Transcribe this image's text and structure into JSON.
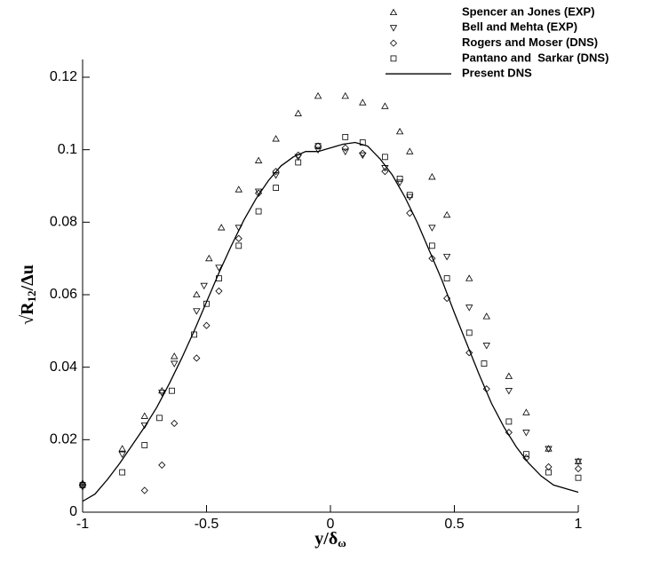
{
  "chart_data": {
    "type": "scatter",
    "x_label": {
      "main": "y/δ",
      "sub": "ω"
    },
    "y_label": {
      "main": "√R",
      "sub": "12",
      "rest": "/Δu"
    },
    "xlim": [
      -1,
      1
    ],
    "ylim": [
      0,
      0.12
    ],
    "xticks": [
      -1,
      -0.5,
      0,
      0.5,
      1
    ],
    "yticks": [
      0,
      0.02,
      0.04,
      0.06,
      0.08,
      0.1,
      0.12
    ],
    "legend": "top-right",
    "series": [
      {
        "name": "Spencer an Jones (EXP)",
        "marker": "triangle-up",
        "color": "#000000",
        "x": [
          -1,
          -0.84,
          -0.75,
          -0.68,
          -0.63,
          -0.54,
          -0.49,
          -0.44,
          -0.37,
          -0.29,
          -0.22,
          -0.13,
          -0.05,
          0.06,
          0.13,
          0.22,
          0.28,
          0.32,
          0.41,
          0.47,
          0.56,
          0.63,
          0.72,
          0.79,
          0.88,
          1
        ],
        "values": [
          0.008,
          0.0175,
          0.0265,
          0.0335,
          0.043,
          0.06,
          0.07,
          0.0785,
          0.089,
          0.097,
          0.103,
          0.11,
          0.1148,
          0.1148,
          0.113,
          0.112,
          0.105,
          0.0995,
          0.0925,
          0.082,
          0.0645,
          0.054,
          0.0375,
          0.0275,
          0.0175,
          0.014
        ]
      },
      {
        "name": "Bell and Mehta (EXP)",
        "marker": "triangle-down",
        "color": "#000000",
        "x": [
          -1,
          -0.84,
          -0.75,
          -0.68,
          -0.63,
          -0.54,
          -0.51,
          -0.45,
          -0.37,
          -0.29,
          -0.22,
          -0.13,
          -0.05,
          0.06,
          0.13,
          0.22,
          0.28,
          0.32,
          0.41,
          0.47,
          0.56,
          0.63,
          0.72,
          0.79,
          0.88,
          1
        ],
        "values": [
          0.007,
          0.016,
          0.024,
          0.033,
          0.041,
          0.0555,
          0.0625,
          0.0675,
          0.0785,
          0.0885,
          0.093,
          0.098,
          0.1,
          0.0995,
          0.0985,
          0.095,
          0.091,
          0.087,
          0.0785,
          0.0705,
          0.0565,
          0.046,
          0.0335,
          0.022,
          0.0175,
          0.014
        ]
      },
      {
        "name": "Rogers and Moser (DNS)",
        "marker": "diamond",
        "color": "#000000",
        "x": [
          -1,
          -0.75,
          -0.68,
          -0.63,
          -0.54,
          -0.5,
          -0.45,
          -0.37,
          -0.29,
          -0.22,
          -0.13,
          -0.05,
          0.06,
          0.13,
          0.22,
          0.32,
          0.41,
          0.47,
          0.56,
          0.63,
          0.72,
          0.79,
          0.88,
          1
        ],
        "values": [
          0.0075,
          0.006,
          0.013,
          0.0245,
          0.0425,
          0.0515,
          0.061,
          0.0755,
          0.088,
          0.094,
          0.0985,
          0.101,
          0.1005,
          0.099,
          0.094,
          0.0825,
          0.07,
          0.059,
          0.044,
          0.034,
          0.022,
          0.015,
          0.0125,
          0.012
        ]
      },
      {
        "name": "Pantano and  Sarkar (DNS)",
        "marker": "square",
        "color": "#000000",
        "x": [
          -1,
          -0.84,
          -0.75,
          -0.69,
          -0.64,
          -0.55,
          -0.5,
          -0.45,
          -0.37,
          -0.29,
          -0.22,
          -0.13,
          -0.05,
          0.06,
          0.13,
          0.22,
          0.28,
          0.32,
          0.41,
          0.47,
          0.56,
          0.62,
          0.72,
          0.79,
          0.88,
          1
        ],
        "values": [
          0.0075,
          0.011,
          0.0185,
          0.026,
          0.0335,
          0.049,
          0.0575,
          0.0645,
          0.0735,
          0.083,
          0.0895,
          0.0965,
          0.101,
          0.1035,
          0.102,
          0.098,
          0.092,
          0.0875,
          0.0735,
          0.0645,
          0.0495,
          0.041,
          0.025,
          0.016,
          0.011,
          0.0095
        ]
      },
      {
        "name": "Present DNS",
        "marker": "line",
        "color": "#000000",
        "x": [
          -1,
          -0.95,
          -0.9,
          -0.85,
          -0.8,
          -0.75,
          -0.7,
          -0.65,
          -0.6,
          -0.55,
          -0.5,
          -0.45,
          -0.4,
          -0.35,
          -0.3,
          -0.25,
          -0.2,
          -0.15,
          -0.1,
          -0.05,
          0,
          0.05,
          0.1,
          0.15,
          0.2,
          0.25,
          0.3,
          0.35,
          0.4,
          0.45,
          0.5,
          0.55,
          0.6,
          0.65,
          0.7,
          0.75,
          0.8,
          0.85,
          0.9,
          0.95,
          1
        ],
        "values": [
          0.003,
          0.005,
          0.009,
          0.0135,
          0.0185,
          0.0235,
          0.029,
          0.0355,
          0.0425,
          0.05,
          0.058,
          0.066,
          0.0735,
          0.0805,
          0.0865,
          0.0915,
          0.0955,
          0.098,
          0.0995,
          0.0995,
          0.1005,
          0.1015,
          0.102,
          0.101,
          0.0975,
          0.093,
          0.087,
          0.08,
          0.072,
          0.064,
          0.055,
          0.0465,
          0.038,
          0.03,
          0.0235,
          0.018,
          0.0135,
          0.01,
          0.0075,
          0.0065,
          0.0055
        ]
      }
    ]
  }
}
